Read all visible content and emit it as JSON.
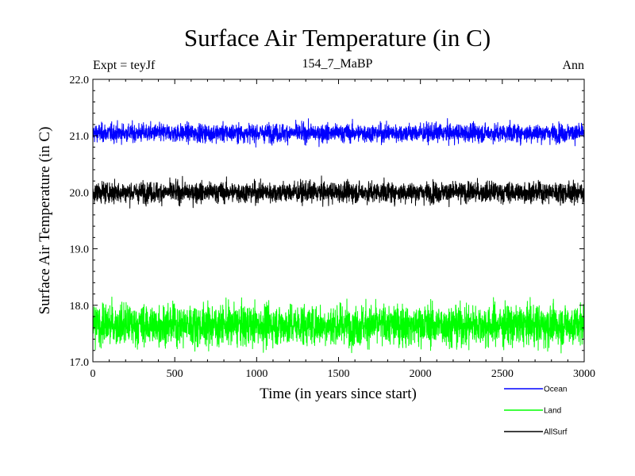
{
  "chart_data": {
    "type": "line",
    "title": "Surface Air Temperature (in C)",
    "subtitle_left": "Expt = teyJf",
    "subtitle_center": "154_7_MaBP",
    "subtitle_right": "Ann",
    "xlabel": "Time (in years since start)",
    "ylabel": "Surface Air Temperature (in C)",
    "xlim": [
      0,
      3000
    ],
    "ylim": [
      17.0,
      22.0
    ],
    "xticks": [
      0,
      500,
      1000,
      1500,
      2000,
      2500,
      3000
    ],
    "xtick_labels": [
      "0",
      "500",
      "1000",
      "1500",
      "2000",
      "2500",
      "3000"
    ],
    "yticks": [
      17.0,
      18.0,
      19.0,
      20.0,
      21.0,
      22.0
    ],
    "ytick_labels": [
      "17.0",
      "18.0",
      "19.0",
      "20.0",
      "21.0",
      "22.0"
    ],
    "grid": false,
    "legend_position": "bottom-right",
    "series": [
      {
        "name": "Ocean",
        "color": "#0000ff",
        "mean": 21.05,
        "noise_sd": 0.08,
        "min": 20.8,
        "max": 21.33
      },
      {
        "name": "Land",
        "color": "#00ff00",
        "mean": 17.65,
        "noise_sd": 0.18,
        "min": 17.0,
        "max": 18.25
      },
      {
        "name": "AllSurf",
        "color": "#000000",
        "mean": 20.0,
        "noise_sd": 0.09,
        "min": 19.72,
        "max": 20.33
      }
    ]
  }
}
